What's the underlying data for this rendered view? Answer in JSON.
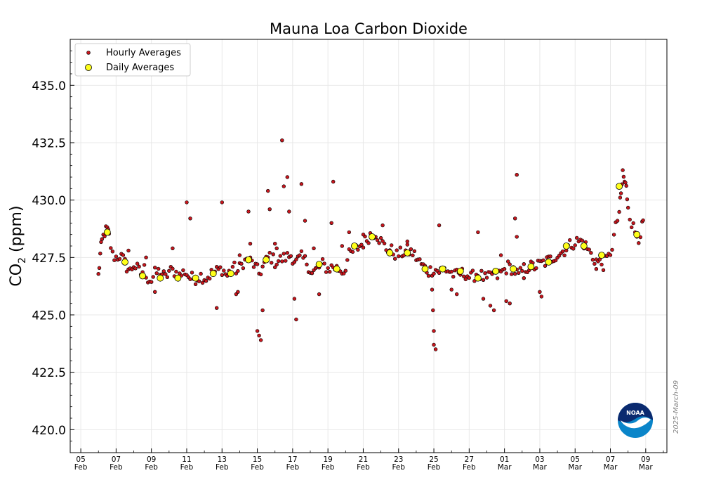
{
  "chart_data": {
    "type": "scatter",
    "title": "Mauna Loa Carbon Dioxide",
    "ylabel": "CO",
    "ylabel_sub": "2",
    "ylabel_unit": " (ppm)",
    "xlabel": "",
    "date_stamp": "2025-March-09",
    "logo_text": "NOAA",
    "ylim": [
      419.0,
      437.0
    ],
    "xlim": [
      -0.6,
      33.2
    ],
    "y_ticks": [
      420.0,
      422.5,
      425.0,
      427.5,
      430.0,
      432.5,
      435.0
    ],
    "y_tick_labels": [
      "420.0",
      "422.5",
      "425.0",
      "427.5",
      "430.0",
      "432.5",
      "435.0"
    ],
    "x_ticks": [
      {
        "day": 0,
        "top": "05",
        "bottom": "Feb"
      },
      {
        "day": 2,
        "top": "07",
        "bottom": "Feb"
      },
      {
        "day": 4,
        "top": "09",
        "bottom": "Feb"
      },
      {
        "day": 6,
        "top": "11",
        "bottom": "Feb"
      },
      {
        "day": 8,
        "top": "13",
        "bottom": "Feb"
      },
      {
        "day": 10,
        "top": "15",
        "bottom": "Feb"
      },
      {
        "day": 12,
        "top": "17",
        "bottom": "Feb"
      },
      {
        "day": 14,
        "top": "19",
        "bottom": "Feb"
      },
      {
        "day": 16,
        "top": "21",
        "bottom": "Feb"
      },
      {
        "day": 18,
        "top": "23",
        "bottom": "Feb"
      },
      {
        "day": 20,
        "top": "25",
        "bottom": "Feb"
      },
      {
        "day": 22,
        "top": "27",
        "bottom": "Feb"
      },
      {
        "day": 24,
        "top": "01",
        "bottom": "Mar"
      },
      {
        "day": 26,
        "top": "03",
        "bottom": "Mar"
      },
      {
        "day": 28,
        "top": "05",
        "bottom": "Mar"
      },
      {
        "day": 30,
        "top": "07",
        "bottom": "Mar"
      },
      {
        "day": 32,
        "top": "09",
        "bottom": "Mar"
      }
    ],
    "legend": {
      "position": "top-left",
      "entries": [
        {
          "label": "Hourly Averages",
          "marker": "small-dot"
        },
        {
          "label": "Daily Averages",
          "marker": "large-dot"
        }
      ]
    },
    "colors": {
      "hourly_fill": "#c8161d",
      "daily_fill": "#ffff1a",
      "marker_edge": "#000000",
      "grid": "#e8e8e8"
    },
    "hourly_anchors": [
      [
        1.0,
        426.7
      ],
      [
        1.1,
        427.6
      ],
      [
        1.2,
        428.2
      ],
      [
        1.35,
        428.6
      ],
      [
        1.5,
        428.7
      ],
      [
        1.6,
        428.4
      ],
      [
        1.8,
        427.6
      ],
      [
        2.0,
        427.5
      ],
      [
        2.2,
        427.6
      ],
      [
        2.4,
        427.4
      ],
      [
        2.6,
        427.1
      ],
      [
        2.8,
        426.9
      ],
      [
        3.0,
        427.2
      ],
      [
        3.2,
        427.0
      ],
      [
        3.4,
        426.8
      ],
      [
        3.6,
        427.0
      ],
      [
        3.8,
        426.6
      ],
      [
        4.0,
        426.5
      ],
      [
        4.2,
        426.8
      ],
      [
        4.5,
        426.9
      ],
      [
        4.8,
        426.6
      ],
      [
        5.0,
        426.9
      ],
      [
        5.3,
        426.9
      ],
      [
        5.6,
        426.7
      ],
      [
        5.9,
        426.9
      ],
      [
        6.2,
        426.6
      ],
      [
        6.5,
        426.6
      ],
      [
        6.8,
        426.7
      ],
      [
        7.1,
        426.6
      ],
      [
        7.4,
        426.8
      ],
      [
        7.7,
        426.9
      ],
      [
        8.0,
        427.0
      ],
      [
        8.3,
        426.7
      ],
      [
        8.6,
        427.1
      ],
      [
        8.9,
        426.9
      ],
      [
        9.2,
        427.3
      ],
      [
        9.5,
        427.4
      ],
      [
        9.8,
        427.2
      ],
      [
        10.1,
        426.8
      ],
      [
        10.4,
        427.2
      ],
      [
        10.7,
        427.6
      ],
      [
        11.0,
        427.3
      ],
      [
        11.3,
        427.4
      ],
      [
        11.6,
        427.5
      ],
      [
        11.9,
        427.6
      ],
      [
        12.2,
        427.3
      ],
      [
        12.5,
        427.5
      ],
      [
        12.8,
        427.3
      ],
      [
        13.1,
        426.8
      ],
      [
        13.4,
        427.0
      ],
      [
        13.7,
        427.2
      ],
      [
        14.0,
        427.0
      ],
      [
        14.3,
        427.1
      ],
      [
        14.6,
        427.0
      ],
      [
        14.9,
        426.9
      ],
      [
        15.2,
        427.6
      ],
      [
        15.5,
        427.8
      ],
      [
        15.8,
        428.0
      ],
      [
        16.1,
        428.2
      ],
      [
        16.4,
        428.5
      ],
      [
        16.7,
        428.6
      ],
      [
        17.0,
        428.2
      ],
      [
        17.3,
        427.9
      ],
      [
        17.6,
        427.8
      ],
      [
        17.9,
        427.6
      ],
      [
        18.2,
        427.7
      ],
      [
        18.5,
        427.8
      ],
      [
        18.8,
        427.7
      ],
      [
        19.1,
        427.4
      ],
      [
        19.4,
        427.1
      ],
      [
        19.7,
        426.9
      ],
      [
        20.0,
        427.0
      ],
      [
        20.3,
        426.9
      ],
      [
        20.6,
        427.0
      ],
      [
        20.9,
        426.9
      ],
      [
        21.2,
        426.7
      ],
      [
        21.5,
        426.8
      ],
      [
        21.8,
        426.8
      ],
      [
        22.1,
        426.6
      ],
      [
        22.4,
        426.8
      ],
      [
        22.7,
        426.7
      ],
      [
        23.0,
        426.5
      ],
      [
        23.3,
        426.8
      ],
      [
        23.6,
        426.7
      ],
      [
        23.9,
        426.9
      ],
      [
        24.2,
        427.1
      ],
      [
        24.5,
        427.0
      ],
      [
        24.8,
        426.7
      ],
      [
        25.1,
        427.0
      ],
      [
        25.4,
        427.1
      ],
      [
        25.7,
        427.1
      ],
      [
        26.0,
        427.2
      ],
      [
        26.3,
        427.3
      ],
      [
        26.6,
        427.4
      ],
      [
        26.9,
        427.6
      ],
      [
        27.2,
        427.7
      ],
      [
        27.5,
        427.9
      ],
      [
        27.8,
        428.1
      ],
      [
        28.1,
        428.2
      ],
      [
        28.4,
        428.2
      ],
      [
        28.7,
        427.9
      ],
      [
        29.0,
        427.5
      ],
      [
        29.3,
        427.3
      ],
      [
        29.6,
        427.2
      ],
      [
        29.9,
        427.5
      ],
      [
        30.1,
        428.0
      ],
      [
        30.3,
        428.8
      ],
      [
        30.5,
        429.5
      ],
      [
        30.6,
        430.2
      ],
      [
        30.7,
        431.2
      ],
      [
        30.8,
        430.8
      ],
      [
        30.9,
        430.5
      ],
      [
        31.0,
        429.8
      ],
      [
        31.2,
        429.0
      ],
      [
        31.4,
        428.6
      ],
      [
        31.6,
        428.4
      ],
      [
        31.8,
        428.8
      ],
      [
        31.9,
        429.1
      ]
    ],
    "hourly_outliers": [
      [
        6.0,
        429.9
      ],
      [
        6.2,
        429.2
      ],
      [
        8.0,
        429.9
      ],
      [
        9.5,
        429.5
      ],
      [
        10.0,
        424.3
      ],
      [
        10.1,
        424.1
      ],
      [
        10.2,
        423.9
      ],
      [
        10.3,
        425.2
      ],
      [
        10.6,
        430.4
      ],
      [
        10.7,
        429.6
      ],
      [
        11.0,
        428.1
      ],
      [
        11.4,
        432.6
      ],
      [
        11.5,
        430.6
      ],
      [
        11.7,
        431.0
      ],
      [
        11.8,
        429.5
      ],
      [
        12.1,
        425.7
      ],
      [
        12.2,
        424.8
      ],
      [
        12.5,
        430.7
      ],
      [
        12.7,
        429.1
      ],
      [
        13.5,
        425.9
      ],
      [
        14.3,
        430.8
      ],
      [
        14.2,
        429.0
      ],
      [
        20.0,
        424.3
      ],
      [
        20.1,
        423.5
      ],
      [
        20.0,
        423.7
      ],
      [
        20.3,
        428.9
      ],
      [
        19.9,
        426.1
      ],
      [
        19.95,
        425.2
      ],
      [
        21.0,
        426.1
      ],
      [
        21.3,
        425.9
      ],
      [
        22.5,
        428.6
      ],
      [
        22.8,
        425.7
      ],
      [
        23.2,
        425.4
      ],
      [
        23.4,
        425.2
      ],
      [
        23.8,
        427.6
      ],
      [
        24.1,
        425.6
      ],
      [
        24.3,
        425.5
      ],
      [
        24.7,
        428.4
      ],
      [
        24.6,
        429.2
      ],
      [
        24.7,
        431.1
      ],
      [
        26.0,
        426.0
      ],
      [
        26.1,
        425.8
      ],
      [
        7.7,
        425.3
      ],
      [
        8.8,
        425.9
      ],
      [
        8.9,
        426.0
      ],
      [
        9.0,
        427.6
      ],
      [
        9.6,
        428.1
      ],
      [
        11.1,
        427.9
      ],
      [
        17.1,
        428.9
      ],
      [
        25.1,
        426.6
      ],
      [
        29.2,
        427.0
      ],
      [
        14.8,
        428.0
      ],
      [
        18.5,
        428.2
      ],
      [
        5.2,
        427.9
      ],
      [
        2.7,
        427.8
      ],
      [
        3.7,
        427.5
      ],
      [
        4.2,
        426.0
      ],
      [
        16.0,
        428.5
      ],
      [
        13.2,
        427.9
      ],
      [
        15.2,
        428.6
      ]
    ],
    "daily_averages": [
      [
        1.5,
        428.6
      ],
      [
        2.5,
        427.3
      ],
      [
        3.5,
        426.7
      ],
      [
        4.5,
        426.6
      ],
      [
        5.5,
        426.6
      ],
      [
        6.5,
        426.6
      ],
      [
        7.5,
        426.8
      ],
      [
        8.5,
        426.8
      ],
      [
        9.5,
        427.4
      ],
      [
        10.5,
        427.4
      ],
      [
        13.5,
        427.2
      ],
      [
        14.5,
        427.0
      ],
      [
        15.5,
        428.0
      ],
      [
        16.5,
        428.4
      ],
      [
        17.5,
        427.7
      ],
      [
        18.5,
        427.7
      ],
      [
        19.5,
        427.0
      ],
      [
        20.5,
        427.0
      ],
      [
        21.5,
        426.9
      ],
      [
        22.5,
        426.6
      ],
      [
        23.5,
        426.9
      ],
      [
        24.5,
        427.0
      ],
      [
        25.5,
        427.1
      ],
      [
        26.5,
        427.3
      ],
      [
        27.5,
        428.0
      ],
      [
        28.5,
        428.0
      ],
      [
        29.5,
        427.6
      ],
      [
        30.5,
        430.6
      ],
      [
        31.5,
        428.5
      ]
    ]
  }
}
